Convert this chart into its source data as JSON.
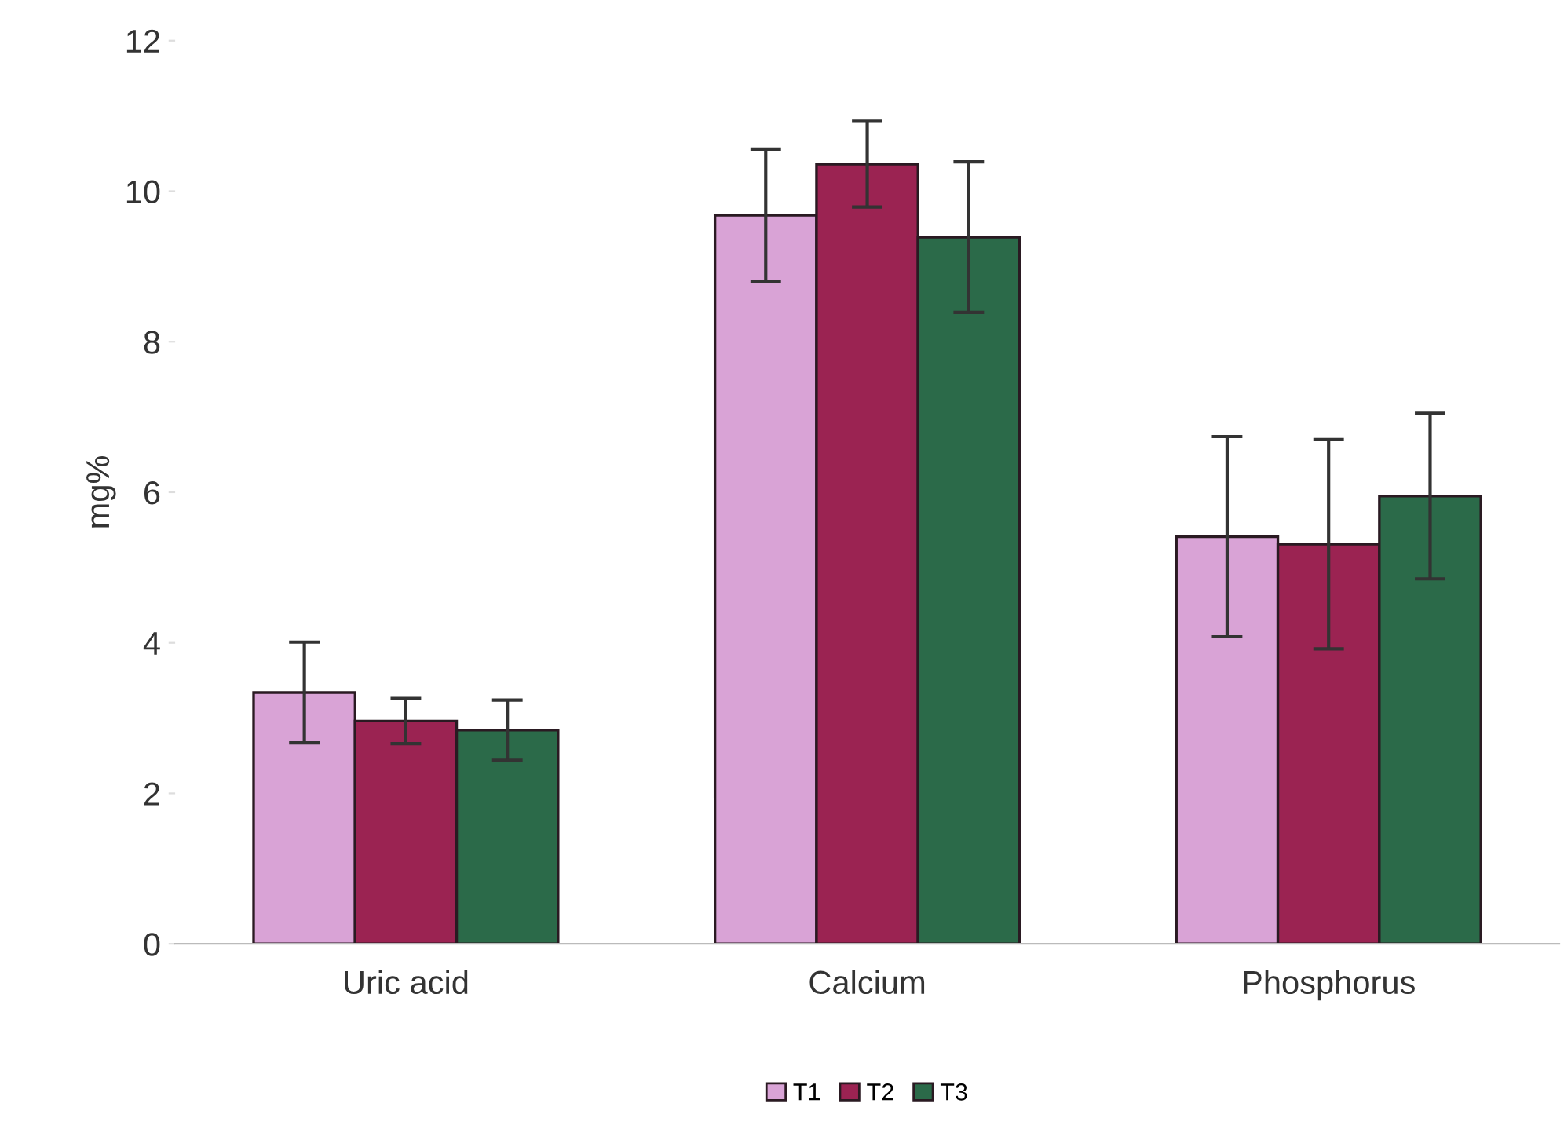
{
  "chart_data": {
    "type": "bar",
    "ylabel": "mg%",
    "categories": [
      "Uric acid",
      "Calcium",
      "Phosphorus"
    ],
    "series": [
      {
        "name": "T1",
        "color": "#d9a3d6",
        "values": [
          3.34,
          9.68,
          5.41
        ],
        "errors": [
          0.67,
          0.88,
          1.33
        ]
      },
      {
        "name": "T2",
        "color": "#9b2352",
        "values": [
          2.96,
          10.36,
          5.31
        ],
        "errors": [
          0.3,
          0.57,
          1.39
        ]
      },
      {
        "name": "T3",
        "color": "#2b6a49",
        "values": [
          2.84,
          9.39,
          5.95
        ],
        "errors": [
          0.4,
          1.0,
          1.1
        ]
      }
    ],
    "ylim": [
      0,
      12
    ],
    "yticks": [
      0,
      2,
      4,
      6,
      8,
      10,
      12
    ],
    "grid": false,
    "legend": "bottom"
  }
}
